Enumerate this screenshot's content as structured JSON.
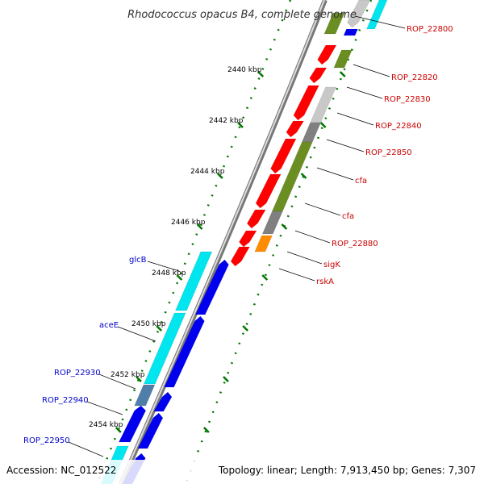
{
  "title": "Rhodococcus opacus B4, complete genome",
  "footer": {
    "accession": "Accession: NC_012522",
    "summary": "Topology: linear; Length: 7,913,450 bp; Genes: 7,307"
  },
  "colors": {
    "red": "#ff0000",
    "olive": "#6b8e23",
    "grey": "#808080",
    "lightgrey": "#c8c8c8",
    "orange": "#ff8c00",
    "blue": "#0000ee",
    "cyan": "#00e5ee",
    "steel": "#4f7fa8",
    "tick": "#007700",
    "backbone": "#999999"
  },
  "scale_labels": [
    {
      "text": "2440 kbp",
      "kbp": 2440
    },
    {
      "text": "2442 kbp",
      "kbp": 2442
    },
    {
      "text": "2444 kbp",
      "kbp": 2444
    },
    {
      "text": "2446 kbp",
      "kbp": 2446
    },
    {
      "text": "2448 kbp",
      "kbp": 2448
    },
    {
      "text": "2450 kbp",
      "kbp": 2450
    },
    {
      "text": "2452 kbp",
      "kbp": 2452
    },
    {
      "text": "2454 kbp",
      "kbp": 2454
    }
  ],
  "gene_labels_right": [
    {
      "text": "ROP_22800"
    },
    {
      "text": "ROP_22820"
    },
    {
      "text": "ROP_22830"
    },
    {
      "text": "ROP_22840"
    },
    {
      "text": "ROP_22850"
    },
    {
      "text": "cfa"
    },
    {
      "text": "cfa"
    },
    {
      "text": "ROP_22880"
    },
    {
      "text": "sigK"
    },
    {
      "text": "rskA"
    }
  ],
  "gene_labels_left": [
    {
      "text": "glcB"
    },
    {
      "text": "aceE"
    },
    {
      "text": "ROP_22930"
    },
    {
      "text": "ROP_22940"
    },
    {
      "text": "ROP_22950"
    }
  ]
}
